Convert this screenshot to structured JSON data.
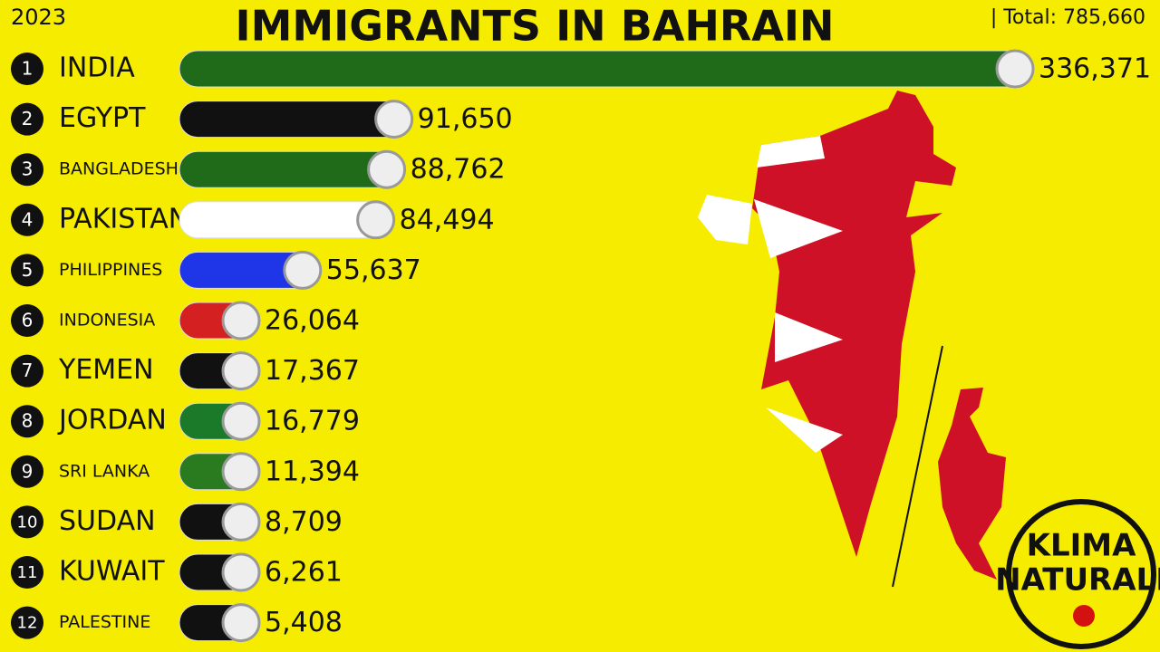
{
  "chart_data": {
    "type": "bar",
    "orientation": "horizontal",
    "year": "2023",
    "title": "IMMIGRANTS IN BAHRAIN",
    "total_label": "| Total: 785,660",
    "ranks": [
      1,
      2,
      3,
      4,
      5,
      6,
      7,
      8,
      9,
      10,
      11,
      12
    ],
    "categories": [
      "INDIA",
      "EGYPT",
      "BANGLADESH",
      "PAKISTAN",
      "PHILIPPINES",
      "INDONESIA",
      "YEMEN",
      "JORDAN",
      "SRI LANKA",
      "SUDAN",
      "KUWAIT",
      "PALESTINE"
    ],
    "values": [
      336371,
      91650,
      88762,
      84494,
      55637,
      26064,
      17367,
      16779,
      11394,
      8709,
      6261,
      5408
    ],
    "value_labels": [
      "336,371",
      "91,650",
      "88,762",
      "84,494",
      "55,637",
      "26,064",
      "17,367",
      "16,779",
      "11,394",
      "8,709",
      "6,261",
      "5,408"
    ],
    "colors": [
      "#1f6b1a",
      "#111111",
      "#1f6b1a",
      "#ffffff",
      "#1f35e8",
      "#d42020",
      "#111111",
      "#1a7a2a",
      "#2a7a20",
      "#111111",
      "#111111",
      "#111111"
    ],
    "logo": [
      "KLIMA",
      "NATURALI"
    ]
  }
}
